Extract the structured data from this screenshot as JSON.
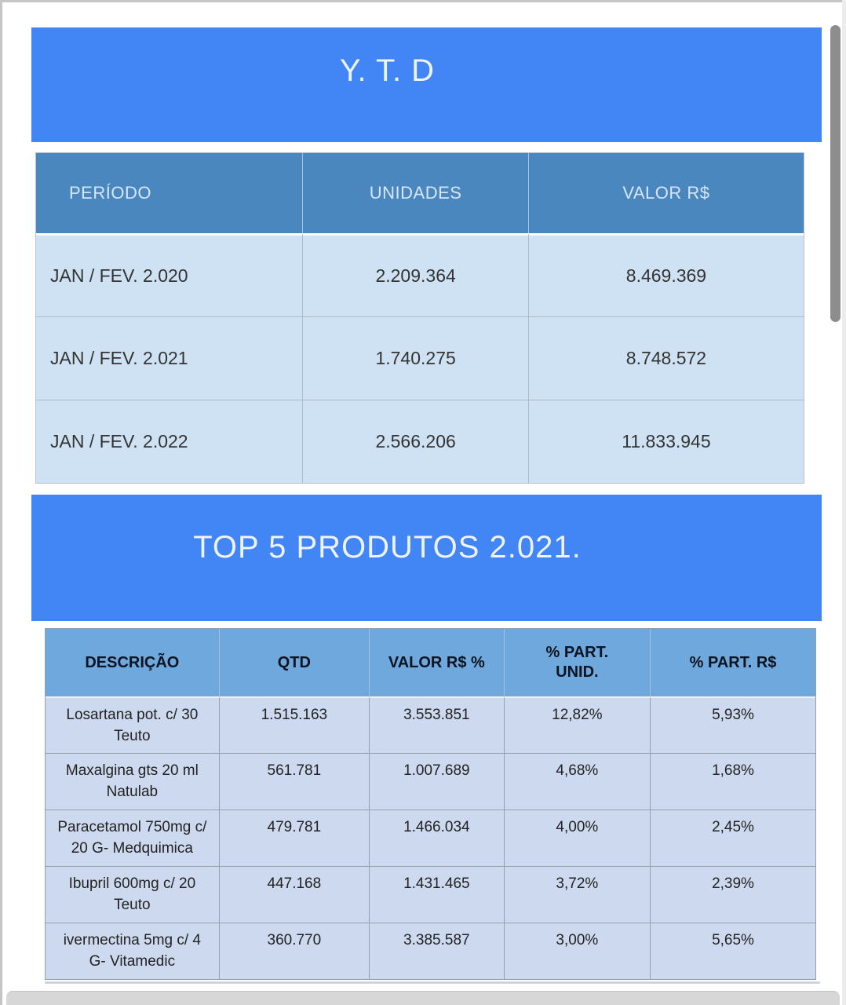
{
  "sections": [
    {
      "banner": "Y. T. D",
      "table": {
        "headers": [
          "PERÍODO",
          "UNIDADES",
          "VALOR R$"
        ],
        "rows": [
          [
            "JAN / FEV. 2.020",
            "2.209.364",
            "8.469.369"
          ],
          [
            "JAN / FEV. 2.021",
            "1.740.275",
            "8.748.572"
          ],
          [
            "JAN / FEV. 2.022",
            "2.566.206",
            "11.833.945"
          ]
        ]
      }
    },
    {
      "banner": "TOP 5 PRODUTOS 2.021.",
      "table": {
        "headers": [
          "DESCRIÇÃO",
          "QTD",
          "VALOR R$ %",
          "% PART. UNID.",
          "% PART. R$"
        ],
        "rows": [
          [
            "Losartana pot. c/ 30 Teuto",
            "1.515.163",
            "3.553.851",
            "12,82%",
            "5,93%"
          ],
          [
            "Maxalgina gts 20 ml Natulab",
            "561.781",
            "1.007.689",
            "4,68%",
            "1,68%"
          ],
          [
            "Paracetamol 750mg c/ 20 G- Medquimica",
            "479.781",
            "1.466.034",
            "4,00%",
            "2,45%"
          ],
          [
            "Ibupril 600mg c/ 20 Teuto",
            "447.168",
            "1.431.465",
            "3,72%",
            "2,39%"
          ],
          [
            "ivermectina 5mg c/ 4 G- Vitamedic",
            "360.770",
            "3.385.587",
            "3,00%",
            "5,65%"
          ]
        ]
      }
    }
  ],
  "colors": {
    "banner_bg": "#4285f4",
    "banner_text": "#eef4fd",
    "table1_header_bg": "#4a87bf",
    "table1_header_text": "#d5e7f7",
    "table1_row_bg": "#cfe2f3",
    "table2_header_bg": "#6fa8dc",
    "table2_header_text": "#0c1421",
    "table2_row_bg": "#cdd9ef",
    "scrollbar_thumb": "#8d8d8d"
  }
}
